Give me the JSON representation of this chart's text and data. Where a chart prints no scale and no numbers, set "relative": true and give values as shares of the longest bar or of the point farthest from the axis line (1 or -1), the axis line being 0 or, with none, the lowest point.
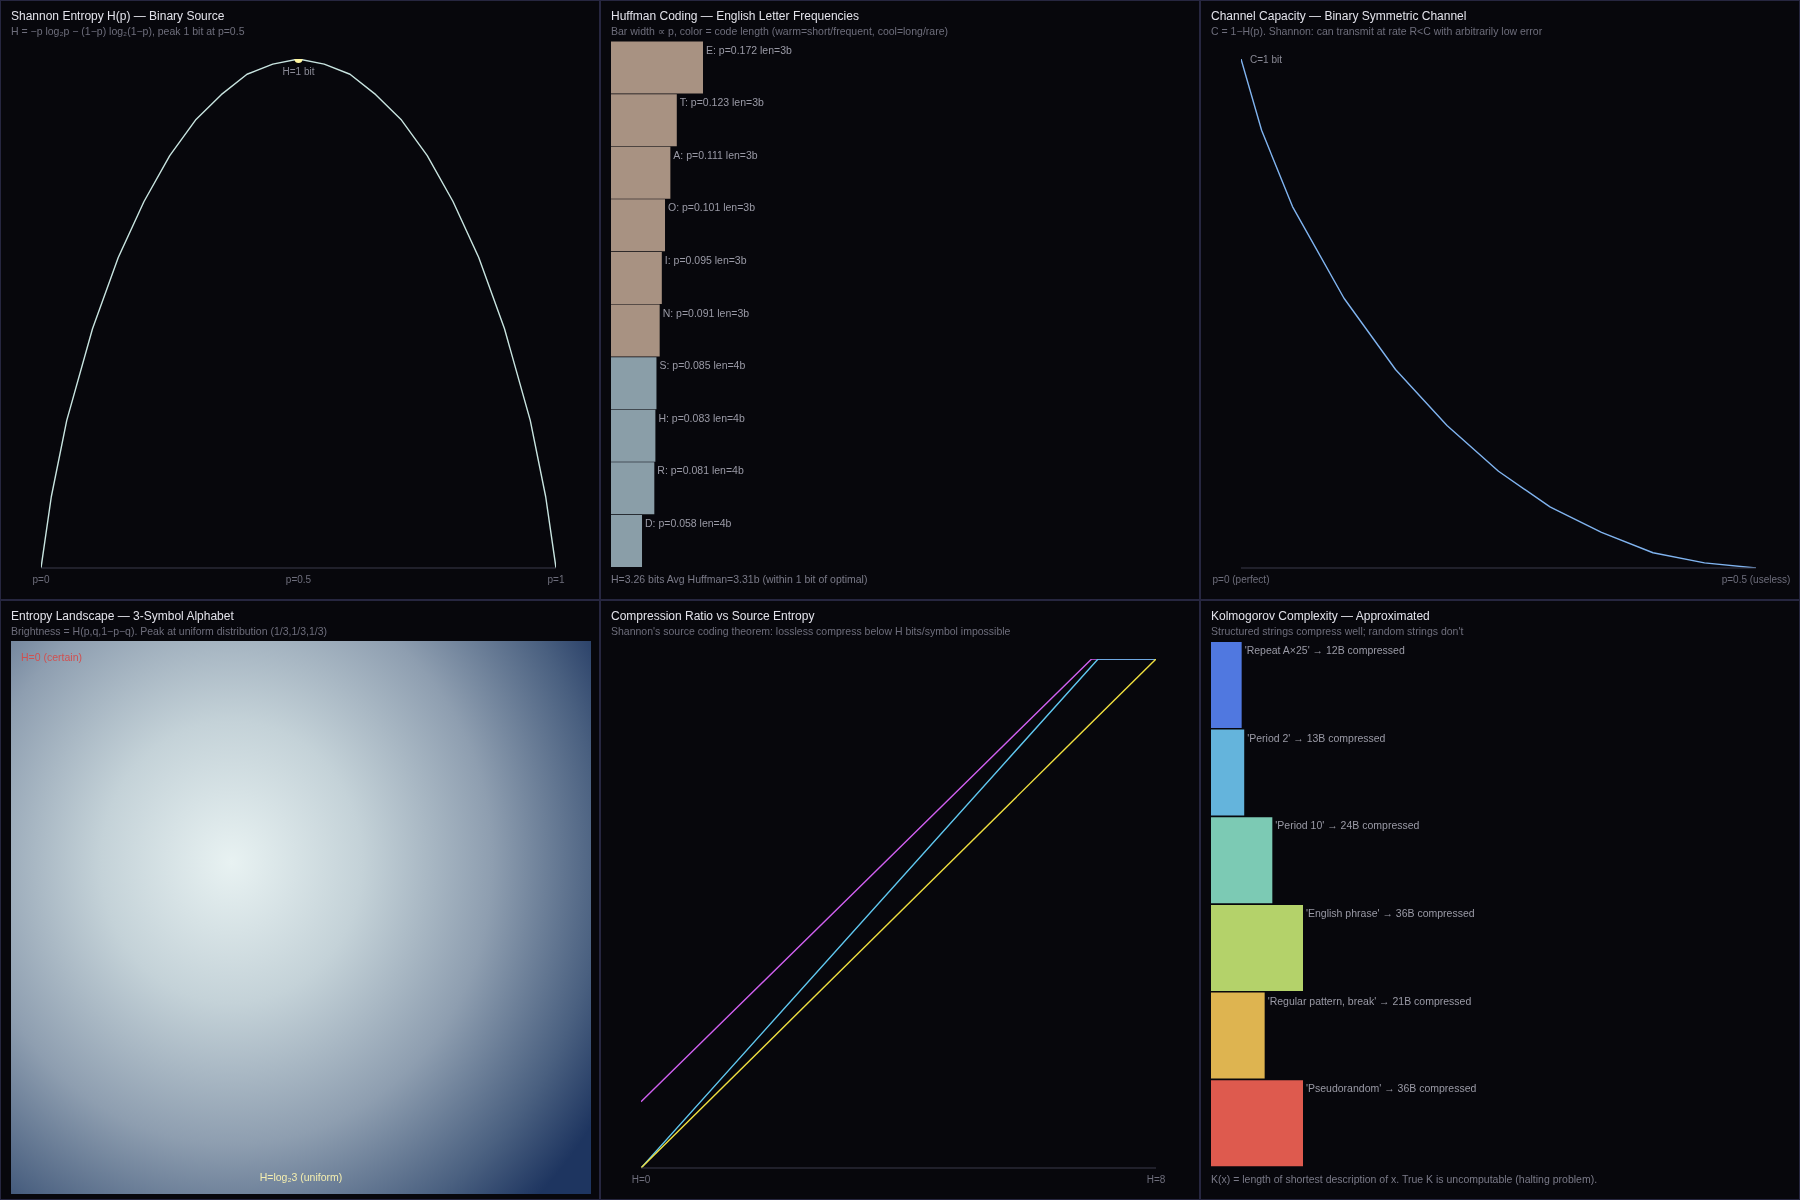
{
  "chart_data": [
    {
      "type": "line",
      "title": "Shannon Entropy H(p) — Binary Source",
      "subtitle": "H = −p log₂p − (1−p) log₂(1−p), peak 1 bit at p=0.5",
      "relative": true,
      "x": [
        0,
        0.02,
        0.05,
        0.1,
        0.15,
        0.2,
        0.25,
        0.3,
        0.35,
        0.4,
        0.45,
        0.5,
        0.55,
        0.6,
        0.65,
        0.7,
        0.75,
        0.8,
        0.85,
        0.9,
        0.95,
        0.98,
        1
      ],
      "xlim": [
        0,
        1
      ],
      "xticks": [
        {
          "value": 0,
          "label": "p=0"
        },
        {
          "value": 0.5,
          "label": "p=0.5"
        },
        {
          "value": 1,
          "label": "p=1"
        }
      ],
      "series": [
        {
          "color": "#c8e4e0",
          "values": [
            0,
            0.14,
            0.29,
            0.47,
            0.61,
            0.72,
            0.81,
            0.88,
            0.93,
            0.97,
            0.99,
            1,
            0.99,
            0.97,
            0.93,
            0.88,
            0.81,
            0.72,
            0.61,
            0.47,
            0.29,
            0.14,
            0
          ]
        },
        {
          "type": "scatter",
          "color": "#fff5a0",
          "x": [
            0.5
          ],
          "values": [
            1
          ]
        }
      ],
      "annotations": [
        {
          "text": "H=1 bit",
          "x": 0.5,
          "y": 1
        }
      ]
    },
    {
      "type": "bar",
      "orientation": "horizontal",
      "title": "Huffman Coding — English Letter Frequencies",
      "subtitle": "Bar width ∝ p, color = code length (warm=short/frequent, cool=long/rare)",
      "categories": [
        null,
        null,
        null,
        null,
        null,
        null,
        null,
        null,
        null,
        null
      ],
      "values": [
        0.172,
        0.123,
        0.111,
        0.101,
        0.095,
        0.091,
        0.085,
        0.083,
        0.081,
        0.058
      ],
      "value_labels": [
        "E: p=0.172  len=3b",
        "T: p=0.123  len=3b",
        "A: p=0.111  len=3b",
        "O: p=0.101  len=3b",
        "I: p=0.095  len=3b",
        "N: p=0.091  len=3b",
        "S: p=0.085  len=4b",
        "H: p=0.083  len=4b",
        "R: p=0.081  len=4b",
        "D: p=0.058  len=4b"
      ],
      "colors": [
        "#a89282",
        "#a89282",
        "#a89282",
        "#a89282",
        "#a89282",
        "#a89282",
        "#8a9ea8",
        "#8a9ea8",
        "#8a9ea8",
        "#8a9ea8"
      ],
      "annotations": [
        "H=3.26 bits  Avg Huffman=3.31b  (within 1 bit of optimal)"
      ]
    },
    {
      "type": "line",
      "title": "Channel Capacity — Binary Symmetric Channel",
      "subtitle": "C = 1−H(p). Shannon: can transmit at rate R<C with arbitrarily low error",
      "relative": true,
      "x": [
        0,
        0.02,
        0.05,
        0.1,
        0.15,
        0.2,
        0.25,
        0.3,
        0.35,
        0.4,
        0.45,
        0.5
      ],
      "xlim": [
        0,
        0.5
      ],
      "xticks": [
        {
          "value": 0,
          "label": "p=0 (perfect)"
        },
        {
          "value": 0.5,
          "label": "p=0.5 (useless)"
        }
      ],
      "series": [
        {
          "color": "#80b4f0",
          "values": [
            1,
            0.86,
            0.71,
            0.53,
            0.39,
            0.28,
            0.19,
            0.12,
            0.07,
            0.03,
            0.01,
            0
          ]
        }
      ],
      "annotations": [
        {
          "text": "C=1 bit",
          "x": 0,
          "y": 1
        }
      ]
    },
    {
      "type": "other",
      "title": "Entropy Landscape — 3-Symbol Alphabet",
      "subtitle": "Brightness = H(p,q,1−p−q). Peak at uniform distribution (1/3,1/3,1/3)",
      "annotations": [
        "H=0 (certain)",
        "H=log₂3 (uniform)"
      ]
    },
    {
      "type": "line",
      "title": "Compression Ratio vs Source Entropy",
      "subtitle": "Shannon's source coding theorem: lossless compress below H bits/symbol impossible",
      "relative": true,
      "xlim": [
        0,
        8
      ],
      "xticks": [
        {
          "value": 0,
          "label": "H=0"
        },
        {
          "value": 8,
          "label": "H=8"
        }
      ],
      "series": [
        {
          "color": "#d060f0",
          "x": [
            0,
            7,
            8
          ],
          "values": [
            0.13,
            1,
            1
          ]
        },
        {
          "color": "#60c8f0",
          "x": [
            0,
            7.1,
            8
          ],
          "values": [
            0,
            1,
            1
          ]
        },
        {
          "color": "#f0e040",
          "x": [
            0,
            8
          ],
          "values": [
            0,
            1
          ]
        }
      ]
    },
    {
      "type": "bar",
      "orientation": "horizontal",
      "title": "Kolmogorov Complexity — Approximated",
      "subtitle": "Structured strings compress well; random strings don't",
      "categories": [
        null,
        null,
        null,
        null,
        null,
        null
      ],
      "values": [
        12,
        13,
        24,
        36,
        21,
        36
      ],
      "value_labels": [
        "'Repeat A×25' → 12B compressed",
        "'Period 2' → 13B compressed",
        "'Period 10' → 24B compressed",
        "'English phrase' → 36B compressed",
        "'Regular pattern, break' → 21B compressed",
        "'Pseudorandom' → 36B compressed"
      ],
      "colors": [
        "#5078e0",
        "#64b4dc",
        "#7ccab4",
        "#b4d26a",
        "#deb450",
        "#de5a4e"
      ],
      "annotations": [
        "K(x) = length of shortest description of x. True K is uncomputable (halting problem)."
      ]
    }
  ]
}
